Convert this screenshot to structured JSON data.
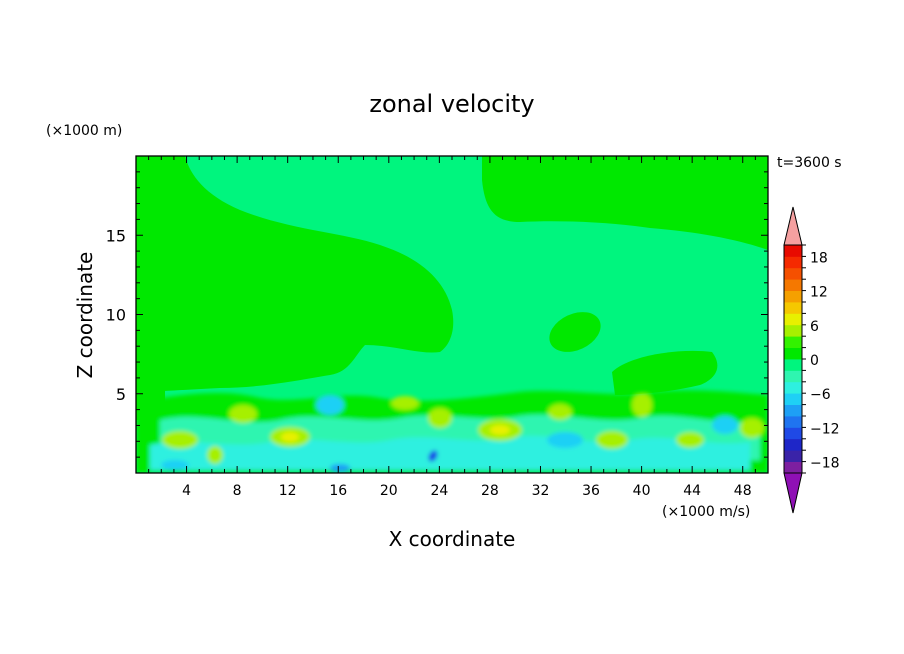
{
  "chart_data": {
    "type": "heatmap",
    "title": "zonal velocity",
    "xlabel": "X coordinate",
    "ylabel": "Z coordinate",
    "x_unit": "(×1000 m/s)",
    "y_unit": "(×1000 m)",
    "time_label": "t=3600 s",
    "xlim": [
      0,
      50
    ],
    "ylim": [
      0,
      20
    ],
    "x_ticks": [
      4,
      8,
      12,
      16,
      20,
      24,
      28,
      32,
      36,
      40,
      44,
      48
    ],
    "x_tick_labels": [
      "4",
      "8",
      "12",
      "16",
      "20",
      "24",
      "28",
      "32",
      "36",
      "40",
      "44",
      "48"
    ],
    "y_ticks": [
      5,
      10,
      15
    ],
    "y_tick_labels": [
      "5",
      "10",
      "15"
    ],
    "colorbar": {
      "levels": [
        -20,
        -18,
        -16,
        -14,
        -12,
        -10,
        -8,
        -6,
        -4,
        -2,
        0,
        2,
        4,
        6,
        8,
        10,
        12,
        14,
        16,
        18,
        20
      ],
      "colors": [
        "#7d1fa0",
        "#3a23a8",
        "#1e26c8",
        "#1f49e6",
        "#1f74f0",
        "#1ea0f5",
        "#1fd0f5",
        "#2ef0e0",
        "#2ff5b0",
        "#00f57e",
        "#00e800",
        "#33f200",
        "#a6f000",
        "#e8f000",
        "#f5c800",
        "#f5a000",
        "#f57800",
        "#f55000",
        "#f52a00",
        "#e80a00"
      ],
      "under_color": "#8f10b5",
      "over_color": "#f5a0a0",
      "tick_values": [
        18,
        12,
        6,
        0,
        -6,
        -12,
        -18
      ],
      "tick_labels": [
        "18",
        "12",
        "6",
        "0",
        "−6",
        "−12",
        "−18"
      ]
    },
    "background_value_range": [
      -2,
      0
    ],
    "grid": false
  }
}
